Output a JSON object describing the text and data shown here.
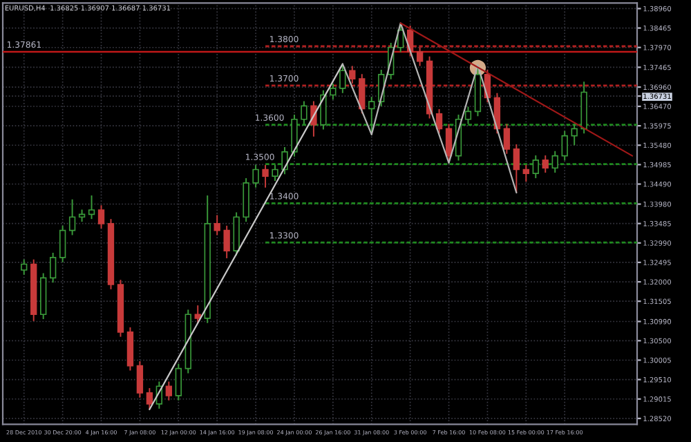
{
  "chart_data": {
    "type": "candlestick",
    "title": "EURUSD,H4  1.36825 1.36907 1.36687 1.36731",
    "categories": [
      "28 Dec 2010",
      null,
      null,
      null,
      "30 Dec 20:00",
      null,
      null,
      null,
      "4 Jan 16:00",
      null,
      null,
      null,
      "7 Jan 08:00",
      null,
      null,
      null,
      "12 Jan 00:00",
      null,
      null,
      null,
      "14 Jan 16:00",
      null,
      null,
      null,
      "19 Jan 08:00",
      null,
      null,
      null,
      "24 Jan 00:00",
      null,
      null,
      null,
      "26 Jan 16:00",
      null,
      null,
      null,
      "31 Jan 08:00",
      null,
      null,
      null,
      "3 Feb 00:00",
      null,
      null,
      null,
      "7 Feb 16:00",
      null,
      null,
      null,
      "10 Feb 08:00",
      null,
      null,
      null,
      "15 Feb 00:00",
      null,
      null,
      null,
      "17 Feb 16:00",
      null,
      null,
      null,
      null,
      null,
      null,
      null
    ],
    "ohlc": [
      [
        1.323,
        1.3257,
        1.3218,
        1.3245
      ],
      [
        1.3245,
        1.3257,
        1.31,
        1.3117
      ],
      [
        1.3117,
        1.3222,
        1.3105,
        1.321
      ],
      [
        1.321,
        1.3274,
        1.3198,
        1.3262
      ],
      [
        1.3262,
        1.3343,
        1.325,
        1.3331
      ],
      [
        1.3331,
        1.341,
        1.3319,
        1.3365
      ],
      [
        1.3365,
        1.3384,
        1.3353,
        1.3372
      ],
      [
        1.3372,
        1.342,
        1.336,
        1.3383
      ],
      [
        1.3383,
        1.3395,
        1.3336,
        1.3348
      ],
      [
        1.3348,
        1.336,
        1.3181,
        1.3193
      ],
      [
        1.3193,
        1.3205,
        1.306,
        1.3072
      ],
      [
        1.3072,
        1.3084,
        1.2974,
        1.2986
      ],
      [
        1.2986,
        1.2998,
        1.2905,
        1.2917
      ],
      [
        1.2917,
        1.2929,
        1.2875,
        1.2889
      ],
      [
        1.2889,
        1.2946,
        1.2877,
        1.2934
      ],
      [
        1.2934,
        1.2946,
        1.2898,
        1.291
      ],
      [
        1.291,
        1.2991,
        1.2898,
        1.2979
      ],
      [
        1.2979,
        1.3129,
        1.2967,
        1.3117
      ],
      [
        1.3117,
        1.314,
        1.3095,
        1.3107
      ],
      [
        1.3107,
        1.342,
        1.3095,
        1.3348
      ],
      [
        1.3348,
        1.337,
        1.3319,
        1.3331
      ],
      [
        1.3331,
        1.3343,
        1.326,
        1.3279
      ],
      [
        1.3279,
        1.3377,
        1.3267,
        1.3365
      ],
      [
        1.3365,
        1.3464,
        1.3353,
        1.3452
      ],
      [
        1.3452,
        1.3498,
        1.344,
        1.3486
      ],
      [
        1.3486,
        1.3498,
        1.344,
        1.3469
      ],
      [
        1.3469,
        1.3498,
        1.3457,
        1.3486
      ],
      [
        1.3486,
        1.3543,
        1.3474,
        1.3531
      ],
      [
        1.3531,
        1.3626,
        1.3519,
        1.3614
      ],
      [
        1.3614,
        1.366,
        1.3602,
        1.3648
      ],
      [
        1.3648,
        1.366,
        1.357,
        1.36
      ],
      [
        1.36,
        1.3688,
        1.3588,
        1.3676
      ],
      [
        1.3676,
        1.3705,
        1.3664,
        1.3693
      ],
      [
        1.3693,
        1.3755,
        1.3681,
        1.3738
      ],
      [
        1.3738,
        1.375,
        1.3705,
        1.3717
      ],
      [
        1.3717,
        1.3729,
        1.3629,
        1.3641
      ],
      [
        1.3641,
        1.3671,
        1.3575,
        1.3659
      ],
      [
        1.3659,
        1.374,
        1.3647,
        1.3728
      ],
      [
        1.3728,
        1.3809,
        1.3716,
        1.3797
      ],
      [
        1.3797,
        1.3859,
        1.3785,
        1.3841
      ],
      [
        1.3841,
        1.3853,
        1.3774,
        1.3786
      ],
      [
        1.3786,
        1.3798,
        1.375,
        1.3762
      ],
      [
        1.3762,
        1.3774,
        1.3616,
        1.3628
      ],
      [
        1.3628,
        1.364,
        1.3578,
        1.359
      ],
      [
        1.359,
        1.3602,
        1.3503,
        1.3521
      ],
      [
        1.3521,
        1.3626,
        1.3509,
        1.3614
      ],
      [
        1.3614,
        1.3646,
        1.3602,
        1.3634
      ],
      [
        1.3634,
        1.3752,
        1.3622,
        1.3728
      ],
      [
        1.3728,
        1.374,
        1.3657,
        1.3669
      ],
      [
        1.3669,
        1.3681,
        1.3578,
        1.359
      ],
      [
        1.359,
        1.3602,
        1.3526,
        1.3538
      ],
      [
        1.3538,
        1.355,
        1.3427,
        1.3486
      ],
      [
        1.3486,
        1.3498,
        1.3455,
        1.3476
      ],
      [
        1.3476,
        1.3522,
        1.3464,
        1.351
      ],
      [
        1.351,
        1.3522,
        1.3478,
        1.349
      ],
      [
        1.349,
        1.3533,
        1.3478,
        1.3521
      ],
      [
        1.3521,
        1.3584,
        1.3509,
        1.3572
      ],
      [
        1.3572,
        1.3602,
        1.3548,
        1.359
      ],
      [
        1.359,
        1.371,
        1.3578,
        1.3683
      ],
      null,
      null,
      null,
      null,
      null
    ],
    "colors": [
      "#3a9a3a",
      "#c83a3a",
      "#3a9a3a",
      "#3a9a3a",
      "#3a9a3a",
      "#3a9a3a",
      "#3a9a3a",
      "#3a9a3a",
      "#c83a3a",
      "#c83a3a",
      "#c83a3a",
      "#c83a3a",
      "#c83a3a",
      "#c83a3a",
      "#3a9a3a",
      "#c83a3a",
      "#3a9a3a",
      "#3a9a3a",
      "#c83a3a",
      "#3a9a3a",
      "#c83a3a",
      "#c83a3a",
      "#3a9a3a",
      "#3a9a3a",
      "#3a9a3a",
      "#c83a3a",
      "#3a9a3a",
      "#3a9a3a",
      "#3a9a3a",
      "#3a9a3a",
      "#c83a3a",
      "#3a9a3a",
      "#3a9a3a",
      "#3a9a3a",
      "#c83a3a",
      "#c83a3a",
      "#3a9a3a",
      "#3a9a3a",
      "#3a9a3a",
      "#3a9a3a",
      "#c83a3a",
      "#c83a3a",
      "#c83a3a",
      "#c83a3a",
      "#c83a3a",
      "#3a9a3a",
      "#3a9a3a",
      "#3a9a3a",
      "#c83a3a",
      "#c83a3a",
      "#c83a3a",
      "#c83a3a",
      "#c83a3a",
      "#3a9a3a",
      "#c83a3a",
      "#3a9a3a",
      "#3a9a3a",
      "#3a9a3a",
      "#3a9a3a",
      null,
      null,
      null,
      null,
      null
    ],
    "series": [
      {
        "type": "line",
        "color": "#c8c8c8",
        "values": [
          null,
          null,
          null,
          null,
          null,
          null,
          null,
          null,
          null,
          null,
          null,
          null,
          null,
          1.2875,
          null,
          null,
          null,
          null,
          null,
          null,
          null,
          null,
          null,
          null,
          null,
          null,
          null,
          null,
          null,
          null,
          null,
          null,
          null,
          1.3755,
          null,
          null,
          null,
          null,
          null,
          null,
          null,
          null,
          null,
          null,
          null,
          null,
          null,
          null,
          null,
          null,
          null,
          null,
          null,
          null,
          null,
          null,
          null,
          null,
          null,
          null,
          null,
          null,
          null,
          null
        ]
      },
      {
        "type": "line",
        "color": "#b4b4b4",
        "values": [
          null,
          null,
          null,
          null,
          null,
          null,
          null,
          null,
          null,
          null,
          null,
          null,
          null,
          null,
          null,
          null,
          null,
          null,
          null,
          null,
          null,
          null,
          null,
          null,
          null,
          null,
          null,
          null,
          null,
          null,
          null,
          null,
          null,
          1.3755,
          null,
          null,
          1.3575,
          null,
          null,
          1.3859,
          null,
          null,
          null,
          null,
          1.3503,
          null,
          null,
          1.3752,
          null,
          null,
          null,
          1.3427,
          null,
          null,
          null,
          null,
          null,
          null,
          null,
          null,
          null,
          null,
          null,
          null
        ]
      },
      {
        "type": "line",
        "color": "#a01818",
        "values": [
          null,
          null,
          null,
          null,
          null,
          null,
          null,
          null,
          null,
          null,
          null,
          null,
          null,
          null,
          null,
          null,
          null,
          null,
          null,
          null,
          null,
          null,
          null,
          null,
          null,
          null,
          null,
          null,
          null,
          null,
          null,
          null,
          null,
          null,
          null,
          null,
          null,
          null,
          null,
          1.3859,
          null,
          null,
          null,
          null,
          null,
          null,
          null,
          null,
          null,
          null,
          null,
          null,
          null,
          null,
          null,
          null,
          null,
          null,
          null,
          null,
          null,
          null,
          null,
          1.3521
        ]
      },
      {
        "type": "scatter",
        "color": "#f8c8a0",
        "values": [
          null,
          null,
          null,
          null,
          null,
          null,
          null,
          null,
          null,
          null,
          null,
          null,
          null,
          null,
          null,
          null,
          null,
          null,
          null,
          null,
          null,
          null,
          null,
          null,
          null,
          null,
          null,
          null,
          null,
          null,
          null,
          null,
          null,
          null,
          null,
          null,
          null,
          null,
          null,
          null,
          null,
          null,
          null,
          null,
          null,
          null,
          null,
          1.3745,
          null,
          null,
          null,
          null,
          null,
          null,
          null,
          null,
          null,
          null,
          null,
          null,
          null,
          null,
          null,
          null
        ]
      }
    ],
    "ref_lines": [
      {
        "axis": "y",
        "value": 1.37861,
        "label": "1.37861",
        "color": "#c01818",
        "line_style": "solid"
      },
      {
        "axis": "y",
        "value": 1.38,
        "label": "1.3800",
        "color": "#b02020",
        "line_style": "dashed"
      },
      {
        "axis": "y",
        "value": 1.37,
        "label": "1.3700",
        "color": "#b02020",
        "line_style": "dashed"
      },
      {
        "axis": "y",
        "value": 1.36,
        "label": "1.3600",
        "color": "#1f8a1f",
        "line_style": "dashed"
      },
      {
        "axis": "y",
        "value": 1.35,
        "label": "1.3500",
        "color": "#1f8a1f",
        "line_style": "dashed"
      },
      {
        "axis": "y",
        "value": 1.34,
        "label": "1.3400",
        "color": "#1f8a1f",
        "line_style": "dashed"
      },
      {
        "axis": "y",
        "value": 1.33,
        "label": "1.3300",
        "color": "#1f8a1f",
        "line_style": "dashed"
      }
    ],
    "ylim": [
      1.2837,
      1.391
    ],
    "yticks": [
      {
        "value": 1.2852,
        "label": "1.28520"
      },
      {
        "value": 1.29015,
        "label": "1.29015"
      },
      {
        "value": 1.2951,
        "label": "1.29510"
      },
      {
        "value": 1.30005,
        "label": "1.30005"
      },
      {
        "value": 1.305,
        "label": "1.30500"
      },
      {
        "value": 1.3099,
        "label": "1.30990"
      },
      {
        "value": 1.31505,
        "label": "1.31505"
      },
      {
        "value": 1.32,
        "label": "1.32000"
      },
      {
        "value": 1.32495,
        "label": "1.32495"
      },
      {
        "value": 1.3299,
        "label": "1.32990"
      },
      {
        "value": 1.33485,
        "label": "1.33485"
      },
      {
        "value": 1.3398,
        "label": "1.33980"
      },
      {
        "value": 1.3449,
        "label": "1.34490"
      },
      {
        "value": 1.34985,
        "label": "1.34985"
      },
      {
        "value": 1.3548,
        "label": "1.35480"
      },
      {
        "value": 1.35975,
        "label": "1.35975"
      },
      {
        "value": 1.3647,
        "label": "1.36470"
      },
      1.36731,
      {
        "value": 1.3696,
        "label": "1.36960"
      },
      {
        "value": 1.37465,
        "label": "1.37465"
      },
      {
        "value": 1.3797,
        "label": "1.37970"
      },
      {
        "value": 1.38465,
        "label": "1.38465"
      },
      {
        "value": 1.3896,
        "label": "1.38960"
      }
    ],
    "grid": true
  }
}
